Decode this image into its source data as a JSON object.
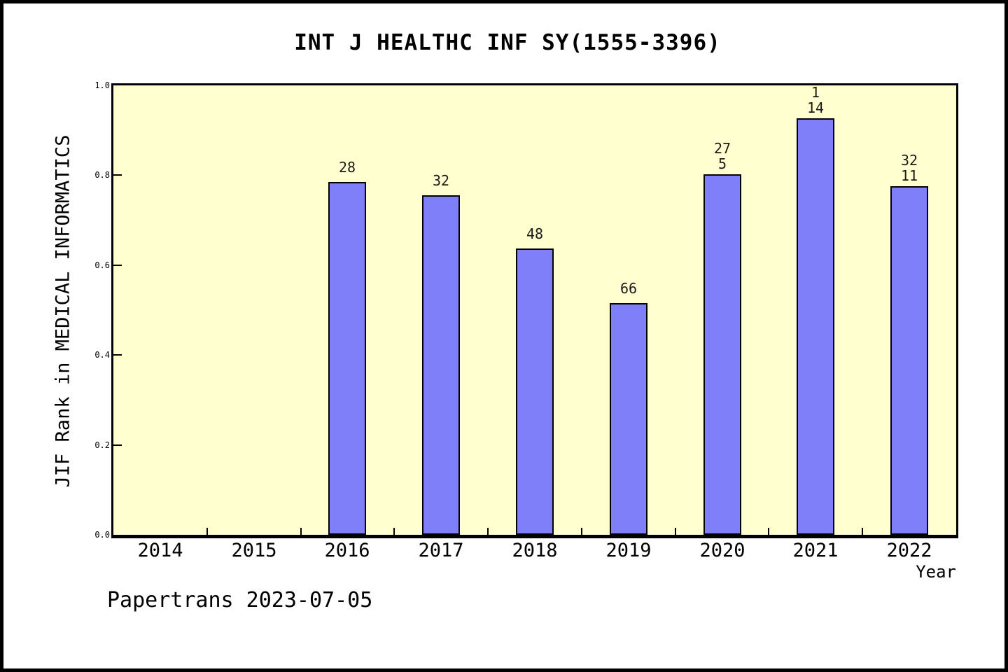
{
  "title": "INT J HEALTHC INF SY(1555-3396)",
  "footer": "Papertrans 2023-07-05",
  "chart_data": {
    "type": "bar",
    "title": "INT J HEALTHC INF SY(1555-3396)",
    "xlabel": "Year",
    "ylabel": "JIF Rank in MEDICAL INFORMATICS",
    "categories": [
      "2014",
      "2015",
      "2016",
      "2017",
      "2018",
      "2019",
      "2020",
      "2021",
      "2022"
    ],
    "values": [
      null,
      null,
      0.785,
      0.755,
      0.637,
      0.516,
      0.802,
      0.927,
      0.776
    ],
    "bar_labels": [
      [],
      [],
      [
        "28"
      ],
      [
        "32"
      ],
      [
        "48"
      ],
      [
        "66"
      ],
      [
        "27",
        "5"
      ],
      [
        "1",
        "14"
      ],
      [
        "32",
        "11"
      ]
    ],
    "ylim": [
      0.0,
      1.0
    ],
    "yticks": [
      0.0,
      0.2,
      0.4,
      0.6,
      0.8,
      1.0
    ],
    "ytick_labels": [
      "0.0",
      "0.2",
      "0.4",
      "0.6",
      "0.8",
      "1.0"
    ],
    "grid": false,
    "legend": null,
    "bar_width_frac": 0.4,
    "colors": {
      "bar_fill": "#7F7FFA",
      "bar_edge": "#000000",
      "plot_bg": "#FFFFD0",
      "page_bg": "#FFFFFF",
      "frame_border": "#000000",
      "text": "#000000"
    }
  }
}
